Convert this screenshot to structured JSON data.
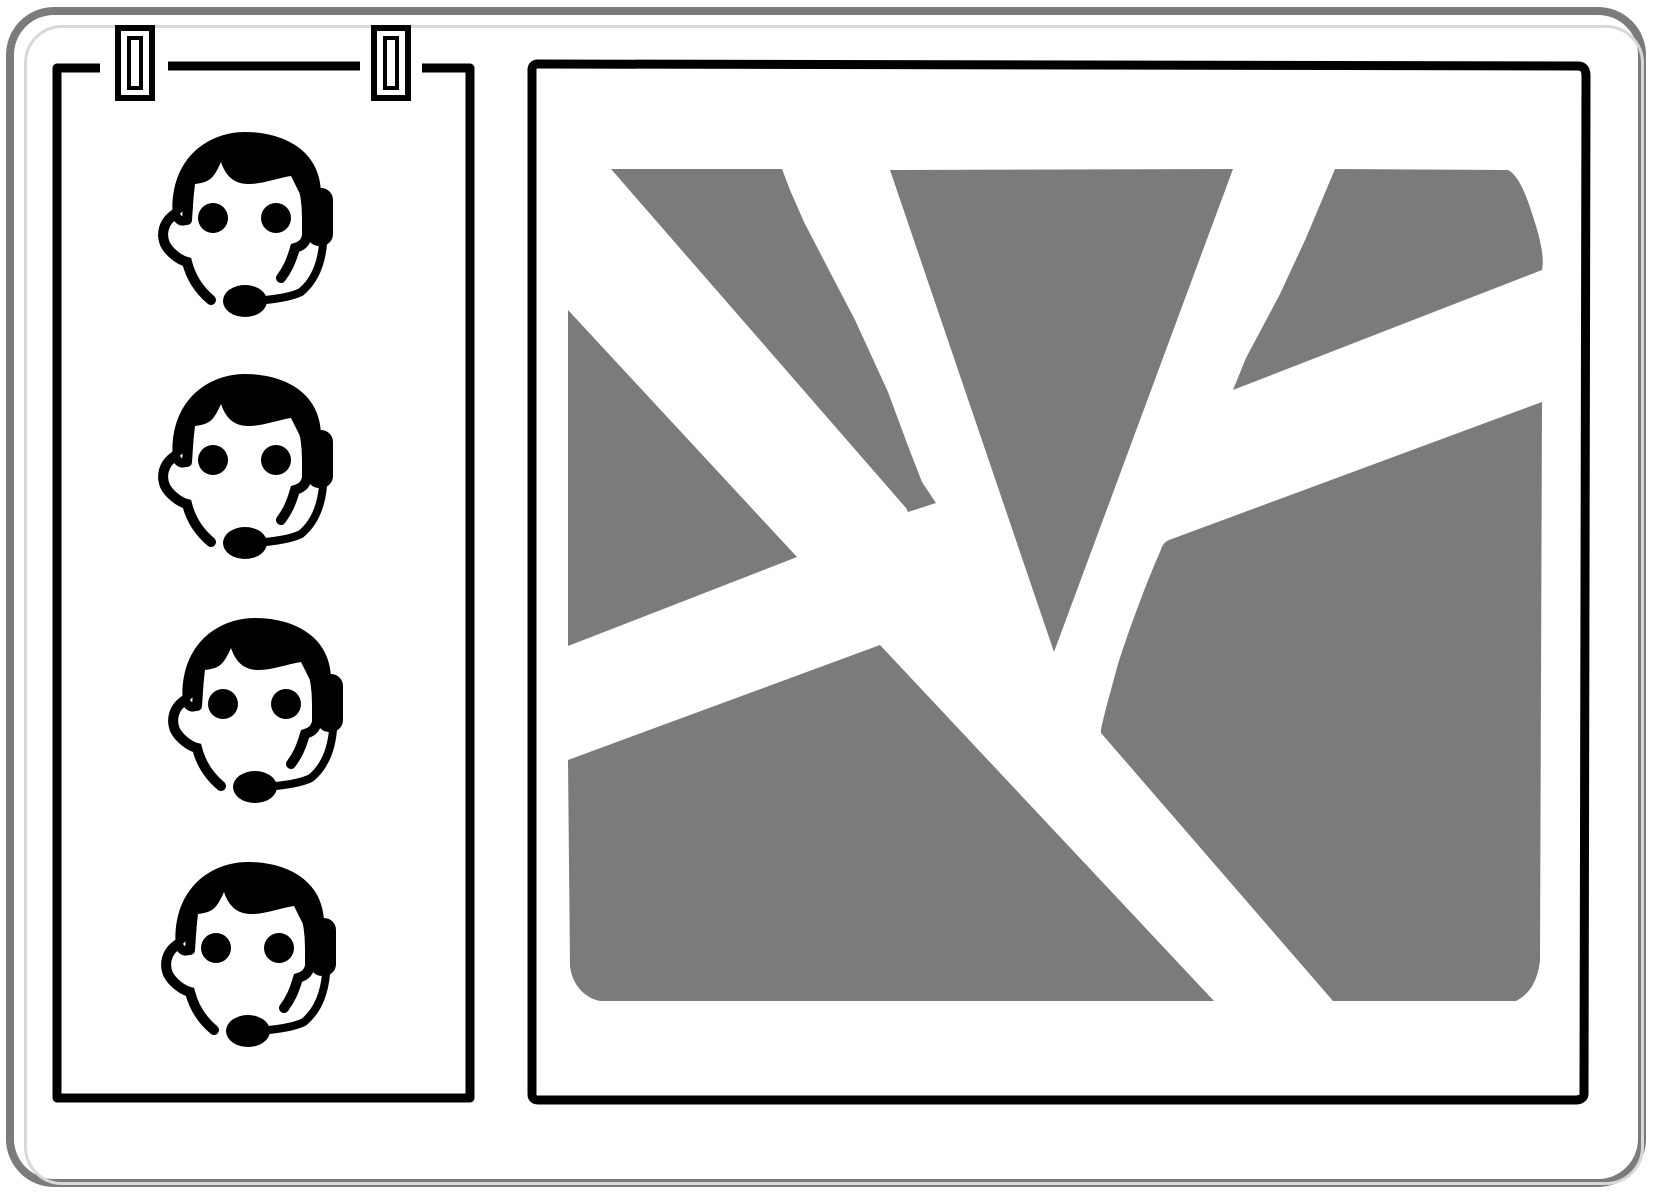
{
  "layout": {
    "agent_panel": {
      "agents": [
        {
          "icon": "agent-headset-icon"
        },
        {
          "icon": "agent-headset-icon"
        },
        {
          "icon": "agent-headset-icon"
        },
        {
          "icon": "agent-headset-icon"
        }
      ],
      "clip_icons": [
        "binder-clip-icon",
        "binder-clip-icon"
      ]
    },
    "map_panel": {
      "icon": "map-icon"
    }
  },
  "colors": {
    "frame": "#7b7b7b",
    "stroke": "#000000",
    "map_fill": "#7b7b7b",
    "background": "#ffffff"
  }
}
